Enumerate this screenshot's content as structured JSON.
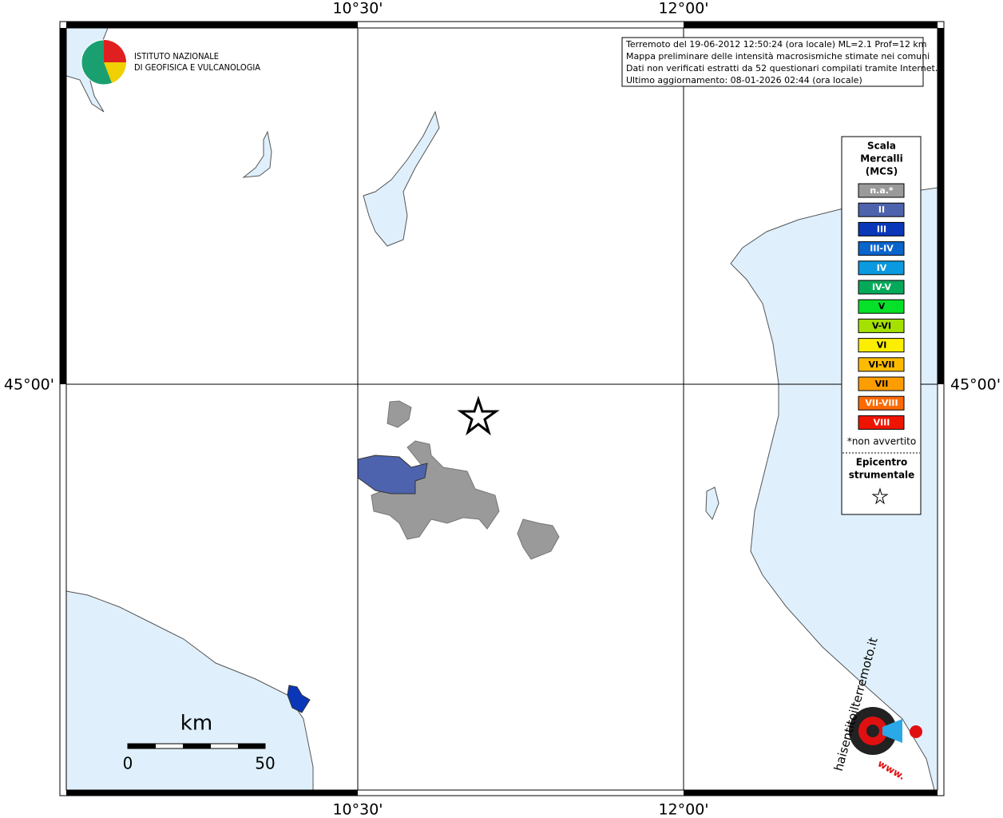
{
  "map": {
    "axis_labels": {
      "top": [
        "10°30'",
        "12°00'"
      ],
      "bottom": [
        "10°30'",
        "12°00'"
      ],
      "left": "45°00'",
      "right": "45°00'"
    },
    "logo": {
      "line1": "ISTITUTO NAZIONALE",
      "line2": "DI GEOFISICA E VULCANOLOGIA"
    },
    "info": [
      "Terremoto del 19-06-2012 12:50:24 (ora locale) ML=2.1 Prof=12 km",
      "Mappa preliminare delle intensità macrosismiche stimate nei comuni",
      "Dati non verificati estratti da 52 questionari compilati tramite Internet.",
      "Ultimo aggiornamento: 08-01-2026 02:44 (ora locale)"
    ],
    "legend": {
      "title": [
        "Scala",
        "Mercalli",
        "(MCS)"
      ],
      "items": [
        {
          "label": "n.a.*",
          "color": "#9a9a9a"
        },
        {
          "label": "II",
          "color": "#4e63ad"
        },
        {
          "label": "III",
          "color": "#0a37b8"
        },
        {
          "label": "III-IV",
          "color": "#0a64cc"
        },
        {
          "label": "IV",
          "color": "#0b9ae0"
        },
        {
          "label": "IV-V",
          "color": "#05a95a"
        },
        {
          "label": "V",
          "color": "#05e028"
        },
        {
          "label": "V-VI",
          "color": "#a5e000"
        },
        {
          "label": "VI",
          "color": "#fcee00"
        },
        {
          "label": "VI-VII",
          "color": "#fdbb00"
        },
        {
          "label": "VII",
          "color": "#fd9d00"
        },
        {
          "label": "VII-VIII",
          "color": "#fd6a00"
        },
        {
          "label": "VIII",
          "color": "#ee1500"
        }
      ],
      "note": "*non avvertito",
      "epicenter": [
        "Epicentro",
        "strumentale"
      ]
    },
    "scale_bar": {
      "unit": "km",
      "start": "0",
      "end": "50"
    },
    "site_logo": {
      "text": "haisentitoilterremoto.it",
      "prefix": "www."
    }
  }
}
